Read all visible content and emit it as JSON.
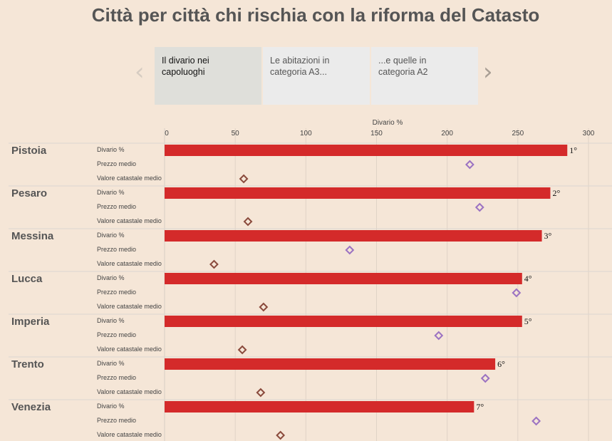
{
  "title": "Città per città chi rischia con la riforma del Catasto",
  "nav": {
    "prev_icon": "chevron-left-icon",
    "next_icon": "chevron-right-icon",
    "tabs": [
      {
        "label_line1": "Il divario nei",
        "label_line2": "capoluoghi",
        "active": true
      },
      {
        "label_line1": "Le abitazioni in",
        "label_line2": "categoria A3...",
        "active": false
      },
      {
        "label_line1": "...e quelle in",
        "label_line2": "categoria A2",
        "active": false
      }
    ]
  },
  "colors": {
    "bar": "#d42a2a",
    "prezzo_marker": "#9b72c2",
    "valore_marker": "#8a4a3c",
    "gridline": "#e0d3c6",
    "separator": "#dcd6d0"
  },
  "chart_data": {
    "type": "bar",
    "title": "Città per città chi rischia con la riforma del Catasto",
    "xlabel": "Divario %",
    "ylabel": "",
    "xlim": [
      0,
      300
    ],
    "xticks": [
      0,
      50,
      100,
      150,
      200,
      250,
      300
    ],
    "grid": true,
    "metric_labels": [
      "Divario %",
      "Prezzo medio",
      "Valore catastale medio"
    ],
    "categories": [
      "Pistoia",
      "Pesaro",
      "Messina",
      "Lucca",
      "Imperia",
      "Trento",
      "Venezia"
    ],
    "ranks": [
      "1°",
      "2°",
      "3°",
      "4°",
      "5°",
      "6°",
      "7°"
    ],
    "series": [
      {
        "name": "Divario %",
        "mark": "bar",
        "values": [
          285,
          273,
          267,
          253,
          253,
          234,
          219
        ]
      },
      {
        "name": "Prezzo medio",
        "mark": "diamond",
        "note": "position in axis units",
        "values": [
          216,
          223,
          131,
          249,
          194,
          227,
          263
        ]
      },
      {
        "name": "Valore catastale medio",
        "mark": "diamond",
        "note": "position in axis units",
        "values": [
          56,
          59,
          35,
          70,
          55,
          68,
          82
        ]
      }
    ]
  }
}
